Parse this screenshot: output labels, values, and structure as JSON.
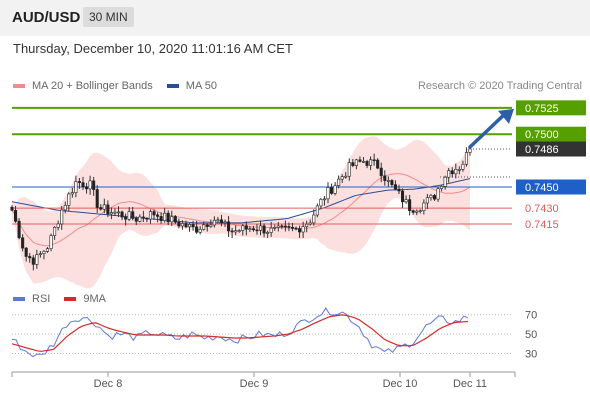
{
  "header": {
    "symbol": "AUD/USD",
    "timeframe": "30 MIN"
  },
  "timestamp": "Thursday, December 10, 2020 11:01:16 AM CET",
  "legend": {
    "items": [
      {
        "label": "MA 20 + Bollinger Bands",
        "color": "#f08c8c"
      },
      {
        "label": "MA 50",
        "color": "#2a4e96"
      }
    ],
    "credit": "Research © 2020 Trading Central"
  },
  "rsi_legend": [
    {
      "label": "RSI",
      "color": "#5b79d8"
    },
    {
      "label": "9MA",
      "color": "#d62a2a"
    }
  ],
  "colors": {
    "resistance": "#55a000",
    "pivot": "#1f5fc8",
    "support": "#e35b5b",
    "current": "#333333",
    "arrow": "#2c5fa5"
  },
  "chart_data": [
    {
      "type": "candlestick",
      "title": "AUD/USD 30 MIN",
      "ylim": [
        0.736,
        0.754
      ],
      "x_ticks": [
        "Dec 8",
        "Dec 9",
        "Dec 10",
        "Dec 11"
      ],
      "levels": [
        {
          "label": "0.7525",
          "value": 0.7525,
          "kind": "resistance"
        },
        {
          "label": "0.7500",
          "value": 0.75,
          "kind": "resistance"
        },
        {
          "label": "0.7486",
          "value": 0.7486,
          "kind": "current"
        },
        {
          "label": "0.7450",
          "value": 0.745,
          "kind": "pivot"
        },
        {
          "label": "0.7430",
          "value": 0.743,
          "kind": "support"
        },
        {
          "label": "0.7415",
          "value": 0.7415,
          "kind": "support"
        }
      ],
      "price_path": [
        [
          0,
          0.7428
        ],
        [
          3,
          0.7385
        ],
        [
          5,
          0.738
        ],
        [
          8,
          0.7395
        ],
        [
          11,
          0.743
        ],
        [
          14,
          0.7455
        ],
        [
          17,
          0.7452
        ],
        [
          19,
          0.743
        ],
        [
          23,
          0.7425
        ],
        [
          27,
          0.742
        ],
        [
          31,
          0.7425
        ],
        [
          35,
          0.7418
        ],
        [
          40,
          0.741
        ],
        [
          44,
          0.742
        ],
        [
          48,
          0.7408
        ],
        [
          53,
          0.7412
        ],
        [
          57,
          0.7408
        ],
        [
          62,
          0.741
        ],
        [
          65,
          0.7418
        ],
        [
          68,
          0.744
        ],
        [
          71,
          0.7455
        ],
        [
          74,
          0.747
        ],
        [
          77,
          0.7475
        ],
        [
          80,
          0.747
        ],
        [
          82,
          0.7455
        ],
        [
          85,
          0.744
        ],
        [
          87,
          0.743
        ],
        [
          89,
          0.7432
        ],
        [
          92,
          0.744
        ],
        [
          95,
          0.7465
        ],
        [
          98,
          0.747
        ],
        [
          100,
          0.7486
        ]
      ],
      "ma50_path": [
        [
          0,
          0.7436
        ],
        [
          10,
          0.7428
        ],
        [
          20,
          0.7424
        ],
        [
          30,
          0.742
        ],
        [
          40,
          0.7416
        ],
        [
          50,
          0.7416
        ],
        [
          60,
          0.742
        ],
        [
          68,
          0.743
        ],
        [
          75,
          0.7442
        ],
        [
          82,
          0.7447
        ],
        [
          88,
          0.7448
        ],
        [
          94,
          0.7452
        ],
        [
          100,
          0.7458
        ]
      ],
      "annotation": "upward arrow from 0.7486 toward 0.7525"
    },
    {
      "type": "line",
      "title": "RSI",
      "ylim": [
        15,
        80
      ],
      "y_ticks": [
        70,
        50,
        30
      ],
      "series": [
        {
          "name": "RSI",
          "values": [
            45,
            32,
            26,
            40,
            62,
            68,
            62,
            48,
            50,
            46,
            52,
            48,
            45,
            50,
            46,
            48,
            44,
            46,
            50,
            48,
            52,
            62,
            70,
            74,
            72,
            60,
            40,
            30,
            35,
            42,
            58,
            66,
            62,
            68
          ]
        },
        {
          "name": "9MA",
          "values": [
            40,
            36,
            32,
            34,
            48,
            58,
            62,
            56,
            52,
            49,
            49,
            49,
            48,
            48,
            48,
            47,
            46,
            46,
            47,
            48,
            50,
            55,
            62,
            68,
            70,
            66,
            56,
            44,
            38,
            38,
            46,
            56,
            62,
            63
          ]
        }
      ]
    }
  ]
}
